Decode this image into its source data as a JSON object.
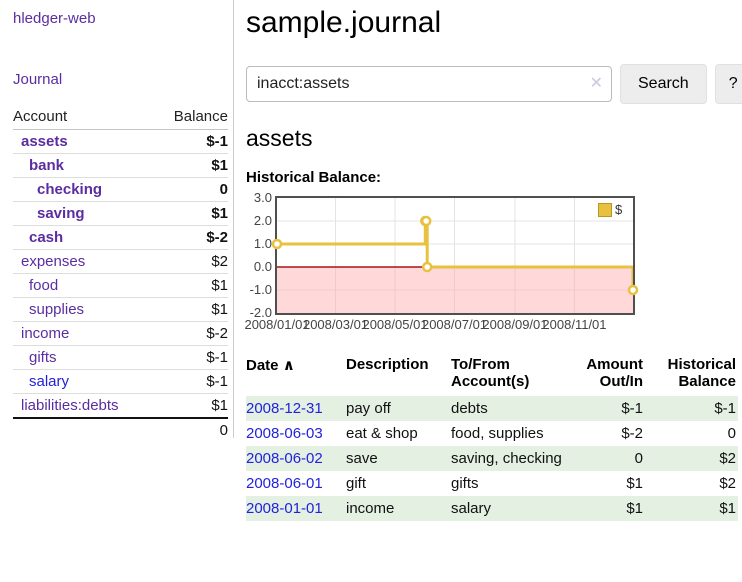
{
  "app": {
    "brand": "hledger-web",
    "nav": {
      "journal": "Journal"
    }
  },
  "colors": {
    "accent_purple": "#5b2da0",
    "link_blue": "#2222dd",
    "negative_red": "#9c1b1b",
    "negative_soft_red": "#c87878",
    "stripe_green": "#e3f0e2",
    "chart_gold": "#e8c13f"
  },
  "sidebar": {
    "header": {
      "account": "Account",
      "balance": "Balance"
    },
    "accounts": [
      {
        "name": "assets",
        "depth": 0,
        "bold": true,
        "balance": "$-1",
        "balance_class": "neg",
        "link_class": "purple"
      },
      {
        "name": "bank",
        "depth": 1,
        "bold": true,
        "balance": "$1",
        "balance_class": "",
        "link_class": "purple"
      },
      {
        "name": "checking",
        "depth": 2,
        "bold": true,
        "balance": "0",
        "balance_class": "",
        "link_class": "purple"
      },
      {
        "name": "saving",
        "depth": 2,
        "bold": true,
        "balance": "$1",
        "balance_class": "",
        "link_class": "purple"
      },
      {
        "name": "cash",
        "depth": 1,
        "bold": true,
        "balance": "$-2",
        "balance_class": "neg",
        "link_class": "purple"
      },
      {
        "name": "expenses",
        "depth": 0,
        "bold": false,
        "balance": "$2",
        "balance_class": "",
        "link_class": "purple"
      },
      {
        "name": "food",
        "depth": 1,
        "bold": false,
        "balance": "$1",
        "balance_class": "",
        "link_class": "purple"
      },
      {
        "name": "supplies",
        "depth": 1,
        "bold": false,
        "balance": "$1",
        "balance_class": "",
        "link_class": "purple"
      },
      {
        "name": "income",
        "depth": 0,
        "bold": false,
        "balance": "$-2",
        "balance_class": "neg-soft",
        "link_class": "purple"
      },
      {
        "name": "gifts",
        "depth": 1,
        "bold": false,
        "balance": "$-1",
        "balance_class": "neg-soft",
        "link_class": "purple"
      },
      {
        "name": "salary",
        "depth": 1,
        "bold": false,
        "balance": "$-1",
        "balance_class": "neg-soft",
        "link_class": "blue"
      },
      {
        "name": "liabilities:debts",
        "depth": 0,
        "bold": false,
        "balance": "$1",
        "balance_class": "",
        "link_class": "purple"
      }
    ],
    "total": "0"
  },
  "header": {
    "title": "sample.journal"
  },
  "search": {
    "value": "inacct:assets",
    "clear_icon": "✕",
    "search_label": "Search",
    "help_label": "?"
  },
  "account_page": {
    "heading": "assets",
    "chart_title": "Historical Balance:"
  },
  "chart_data": {
    "type": "line",
    "step": true,
    "title": "Historical Balance:",
    "x_range": [
      "2008-01-01",
      "2008-12-31"
    ],
    "ylim": [
      -2,
      3
    ],
    "y_ticks": [
      {
        "value": 3,
        "label": "3.0"
      },
      {
        "value": 2,
        "label": "2.0"
      },
      {
        "value": 1,
        "label": "1.0"
      },
      {
        "value": 0,
        "label": "0.0"
      },
      {
        "value": -1,
        "label": "-1.0"
      },
      {
        "value": -2,
        "label": "-2.0"
      }
    ],
    "x_ticks": [
      {
        "date": "2008-01-01",
        "label": "2008/01/01"
      },
      {
        "date": "2008-03-01",
        "label": "2008/03/01"
      },
      {
        "date": "2008-05-01",
        "label": "2008/05/01"
      },
      {
        "date": "2008-07-01",
        "label": "2008/07/01"
      },
      {
        "date": "2008-09-01",
        "label": "2008/09/01"
      },
      {
        "date": "2008-11-01",
        "label": "2008/11/01"
      }
    ],
    "series": [
      {
        "name": "$",
        "color": "#e8c13f",
        "points": [
          {
            "x": "2008-01-01",
            "y": 1
          },
          {
            "x": "2008-06-01",
            "y": 2
          },
          {
            "x": "2008-06-02",
            "y": 2
          },
          {
            "x": "2008-06-03",
            "y": 0
          },
          {
            "x": "2008-12-31",
            "y": -1
          }
        ]
      }
    ],
    "legend": {
      "label": "$",
      "position": "top-right"
    },
    "grid": true,
    "zero_line_color": "#a51515",
    "negative_fill": "rgba(255,170,170,0.45)"
  },
  "register": {
    "sort_icon": "∧",
    "columns": [
      {
        "label": "Date"
      },
      {
        "label": "Description"
      },
      {
        "label": "To/From Account(s)"
      },
      {
        "label": "Amount Out/In"
      },
      {
        "label": "Historical Balance"
      }
    ],
    "rows": [
      {
        "date": "2008-12-31",
        "description": "pay off",
        "accounts": "debts",
        "amount": "$-1",
        "amount_class": "neg",
        "balance": "$-1",
        "balance_class": "neg"
      },
      {
        "date": "2008-06-03",
        "description": "eat & shop",
        "accounts": "food, supplies",
        "amount": "$-2",
        "amount_class": "neg",
        "balance": "0",
        "balance_class": ""
      },
      {
        "date": "2008-06-02",
        "description": "save",
        "accounts": "saving, checking",
        "amount": "0",
        "amount_class": "",
        "balance": "$2",
        "balance_class": ""
      },
      {
        "date": "2008-06-01",
        "description": "gift",
        "accounts": "gifts",
        "amount": "$1",
        "amount_class": "",
        "balance": "$2",
        "balance_class": ""
      },
      {
        "date": "2008-01-01",
        "description": "income",
        "accounts": "salary",
        "amount": "$1",
        "amount_class": "",
        "balance": "$1",
        "balance_class": ""
      }
    ]
  }
}
